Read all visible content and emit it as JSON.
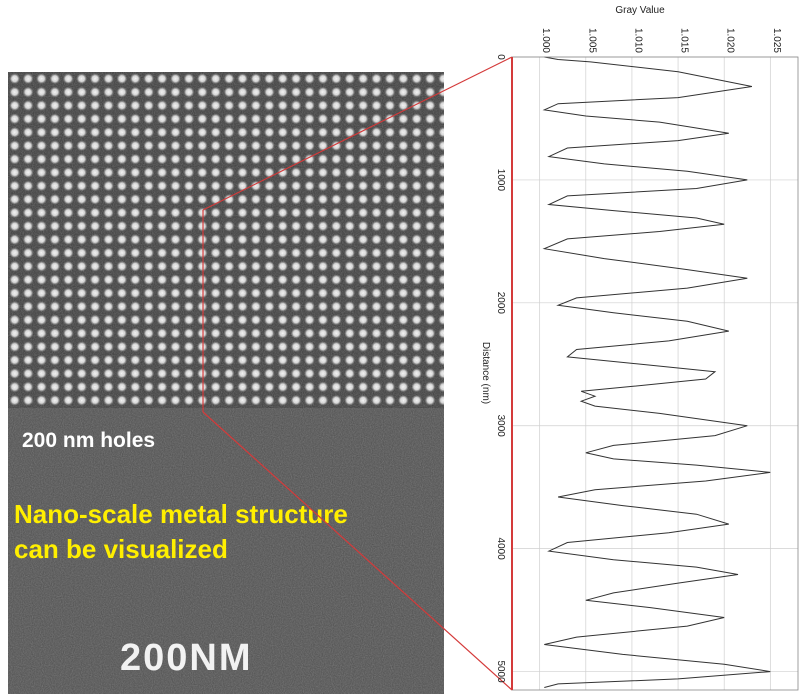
{
  "micrograph": {
    "holes_label": "200 nm holes",
    "caption_line1": "Nano-scale metal structure",
    "caption_line2": "can be visualized",
    "scale_label": "200NM"
  },
  "chart_data": {
    "type": "line",
    "title": "",
    "xlabel": "Gray Value",
    "ylabel": "Distance (nm)",
    "xlim": [
      0.997,
      1.028
    ],
    "ylim": [
      0,
      5150
    ],
    "x_ticks": [
      "1.000",
      "1.005",
      "1.010",
      "1.015",
      "1.020",
      "1.025"
    ],
    "y_ticks": [
      "0",
      "1000",
      "2000",
      "3000",
      "4000",
      "5000"
    ],
    "grid": true,
    "orientation": "distance-vertical",
    "series": [
      {
        "color": "#333333",
        "points": [
          [
            1.0005,
            0
          ],
          [
            1.002,
            20
          ],
          [
            1.0055,
            40
          ],
          [
            1.015,
            120
          ],
          [
            1.023,
            240
          ],
          [
            1.015,
            330
          ],
          [
            1.002,
            380
          ],
          [
            1.0005,
            430
          ],
          [
            1.005,
            480
          ],
          [
            1.013,
            530
          ],
          [
            1.0205,
            620
          ],
          [
            1.015,
            680
          ],
          [
            1.003,
            740
          ],
          [
            1.001,
            810
          ],
          [
            1.007,
            870
          ],
          [
            1.016,
            930
          ],
          [
            1.0225,
            1000
          ],
          [
            1.017,
            1070
          ],
          [
            1.003,
            1130
          ],
          [
            1.001,
            1200
          ],
          [
            1.008,
            1250
          ],
          [
            1.017,
            1310
          ],
          [
            1.02,
            1360
          ],
          [
            1.013,
            1420
          ],
          [
            1.003,
            1480
          ],
          [
            1.0005,
            1560
          ],
          [
            1.007,
            1640
          ],
          [
            1.016,
            1730
          ],
          [
            1.0225,
            1800
          ],
          [
            1.016,
            1880
          ],
          [
            1.004,
            1960
          ],
          [
            1.002,
            2020
          ],
          [
            1.008,
            2080
          ],
          [
            1.016,
            2150
          ],
          [
            1.0205,
            2230
          ],
          [
            1.014,
            2310
          ],
          [
            1.004,
            2380
          ],
          [
            1.003,
            2440
          ],
          [
            1.011,
            2500
          ],
          [
            1.019,
            2560
          ],
          [
            1.018,
            2620
          ],
          [
            1.01,
            2680
          ],
          [
            1.0045,
            2720
          ],
          [
            1.006,
            2760
          ],
          [
            1.0045,
            2800
          ],
          [
            1.006,
            2840
          ],
          [
            1.013,
            2900
          ],
          [
            1.0225,
            3000
          ],
          [
            1.019,
            3080
          ],
          [
            1.008,
            3160
          ],
          [
            1.005,
            3220
          ],
          [
            1.008,
            3270
          ],
          [
            1.017,
            3320
          ],
          [
            1.025,
            3380
          ],
          [
            1.018,
            3450
          ],
          [
            1.006,
            3520
          ],
          [
            1.002,
            3580
          ],
          [
            1.009,
            3650
          ],
          [
            1.017,
            3720
          ],
          [
            1.0205,
            3800
          ],
          [
            1.014,
            3870
          ],
          [
            1.003,
            3950
          ],
          [
            1.001,
            4020
          ],
          [
            1.008,
            4090
          ],
          [
            1.017,
            4150
          ],
          [
            1.0215,
            4210
          ],
          [
            1.015,
            4280
          ],
          [
            1.008,
            4360
          ],
          [
            1.005,
            4420
          ],
          [
            1.012,
            4480
          ],
          [
            1.02,
            4560
          ],
          [
            1.016,
            4630
          ],
          [
            1.004,
            4720
          ],
          [
            1.0005,
            4780
          ],
          [
            1.009,
            4860
          ],
          [
            1.02,
            4940
          ],
          [
            1.025,
            5000
          ],
          [
            1.015,
            5060
          ],
          [
            1.002,
            5100
          ],
          [
            1.0005,
            5130
          ]
        ]
      }
    ]
  }
}
